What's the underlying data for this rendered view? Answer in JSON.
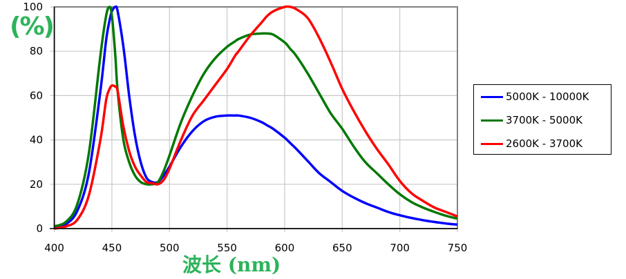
{
  "chart_data": {
    "type": "line",
    "title": "",
    "xlabel": "波长 (nm)",
    "ylabel": "(%)",
    "xlim": [
      400,
      750
    ],
    "ylim": [
      0,
      100
    ],
    "x_ticks": [
      "400",
      "450",
      "500",
      "550",
      "600",
      "650",
      "700",
      "750"
    ],
    "y_ticks": [
      "0",
      "20",
      "40",
      "60",
      "80",
      "100"
    ],
    "grid": true,
    "legend_position": "right",
    "x": [
      400,
      410,
      420,
      430,
      440,
      445,
      448,
      450,
      453,
      455,
      460,
      465,
      470,
      475,
      480,
      485,
      490,
      495,
      500,
      510,
      520,
      530,
      540,
      550,
      557,
      560,
      570,
      580,
      585,
      590,
      600,
      605,
      610,
      620,
      630,
      640,
      650,
      660,
      670,
      680,
      690,
      700,
      710,
      720,
      730,
      740,
      750
    ],
    "series": [
      {
        "name": "5000K - 10000K",
        "color": "#0000ff",
        "values": [
          0.5,
          2,
          8,
          25,
          62,
          85,
          94,
          98,
          100,
          98,
          82,
          60,
          42,
          30,
          23,
          21,
          21,
          24,
          28,
          37,
          44,
          48.5,
          50.5,
          51,
          51,
          51,
          50,
          48,
          46.5,
          45,
          41,
          38.5,
          36,
          30.5,
          25,
          21,
          17,
          14,
          11.5,
          9.5,
          7.5,
          6,
          4.8,
          3.8,
          3,
          2.3,
          1.8
        ]
      },
      {
        "name": "3700K - 5000K",
        "color": "#007800",
        "values": [
          1,
          3,
          11,
          34,
          78,
          96,
          100,
          96,
          78,
          62,
          40,
          30,
          24,
          21,
          20,
          20,
          21,
          26,
          33,
          48,
          60,
          70,
          77,
          82,
          84.5,
          85.5,
          87.5,
          88,
          88,
          87.5,
          84,
          81,
          78,
          70,
          61,
          52,
          45,
          37,
          30,
          25,
          20,
          15.5,
          12,
          9.5,
          7.5,
          5.8,
          4.5
        ]
      },
      {
        "name": "2600K - 3700K",
        "color": "#ff0000",
        "values": [
          0,
          1,
          4,
          15,
          40,
          58,
          63,
          64.5,
          64,
          62,
          46,
          35,
          28,
          24,
          21,
          20.5,
          20,
          22,
          27,
          40,
          51,
          58,
          65,
          72,
          78,
          80,
          87,
          93,
          96,
          98,
          100,
          100,
          99,
          95,
          86,
          75,
          63,
          53,
          44,
          36,
          29,
          21.5,
          16,
          12.5,
          9.5,
          7.5,
          5.5
        ]
      }
    ]
  },
  "legend": {
    "items": [
      {
        "label": "5000K - 10000K",
        "color": "#0000ff"
      },
      {
        "label": "3700K - 5000K",
        "color": "#007800"
      },
      {
        "label": "2600K - 3700K",
        "color": "#ff0000"
      }
    ]
  },
  "axes": {
    "ylabel": "(%)",
    "xlabel": "波长 (nm)"
  }
}
